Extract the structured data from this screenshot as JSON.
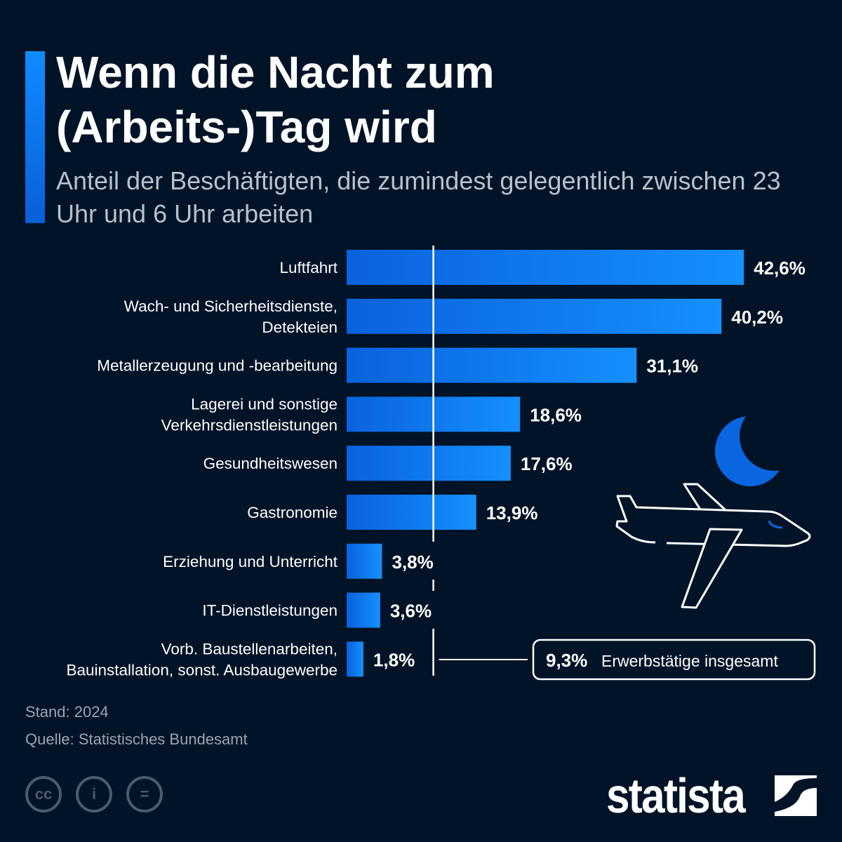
{
  "title": "Wenn die Nacht zum (Arbeits-)Tag wird",
  "subtitle": "Anteil der Beschäftigten, die zumindest gelegentlich zwischen 23 Uhr und 6 Uhr arbeiten",
  "chart_data": {
    "type": "bar",
    "orientation": "horizontal",
    "categories": [
      [
        "Luftfahrt"
      ],
      [
        "Wach- und Sicherheitsdienste,",
        "Detekteien"
      ],
      [
        "Metallerzeugung und -bearbeitung"
      ],
      [
        "Lagerei und sonstige",
        "Verkehrsdienstleistungen"
      ],
      [
        "Gesundheitswesen"
      ],
      [
        "Gastronomie"
      ],
      [
        "Erziehung und Unterricht"
      ],
      [
        "IT-Dienstleistungen"
      ],
      [
        "Vorb. Baustellenarbeiten,",
        "Bauinstallation, sonst. Ausbaugewerbe"
      ]
    ],
    "values": [
      42.6,
      40.2,
      31.1,
      18.6,
      17.6,
      13.9,
      3.8,
      3.6,
      1.8
    ],
    "value_labels": [
      "42,6%",
      "40,2%",
      "31,1%",
      "18,6%",
      "17,6%",
      "13,9%",
      "3,8%",
      "3,6%",
      "1,8%"
    ],
    "reference_line": {
      "value": 9.3,
      "value_label": "9,3%",
      "label": "Erwerbstätige insgesamt"
    },
    "unit": "%",
    "bar_color_start": "#0a62dc",
    "bar_color_end": "#1590ff"
  },
  "footer": {
    "stand": "Stand: 2024",
    "quelle": "Quelle: Statistisches Bundesamt"
  },
  "brand": "statista",
  "icons": [
    "cc-icon",
    "attribution-icon",
    "no-derivatives-icon",
    "moon-icon",
    "airplane-icon",
    "statista-logo-icon"
  ],
  "colors": {
    "background": "#001327",
    "accent": "#0a66e0",
    "moon": "#0a66e0"
  }
}
